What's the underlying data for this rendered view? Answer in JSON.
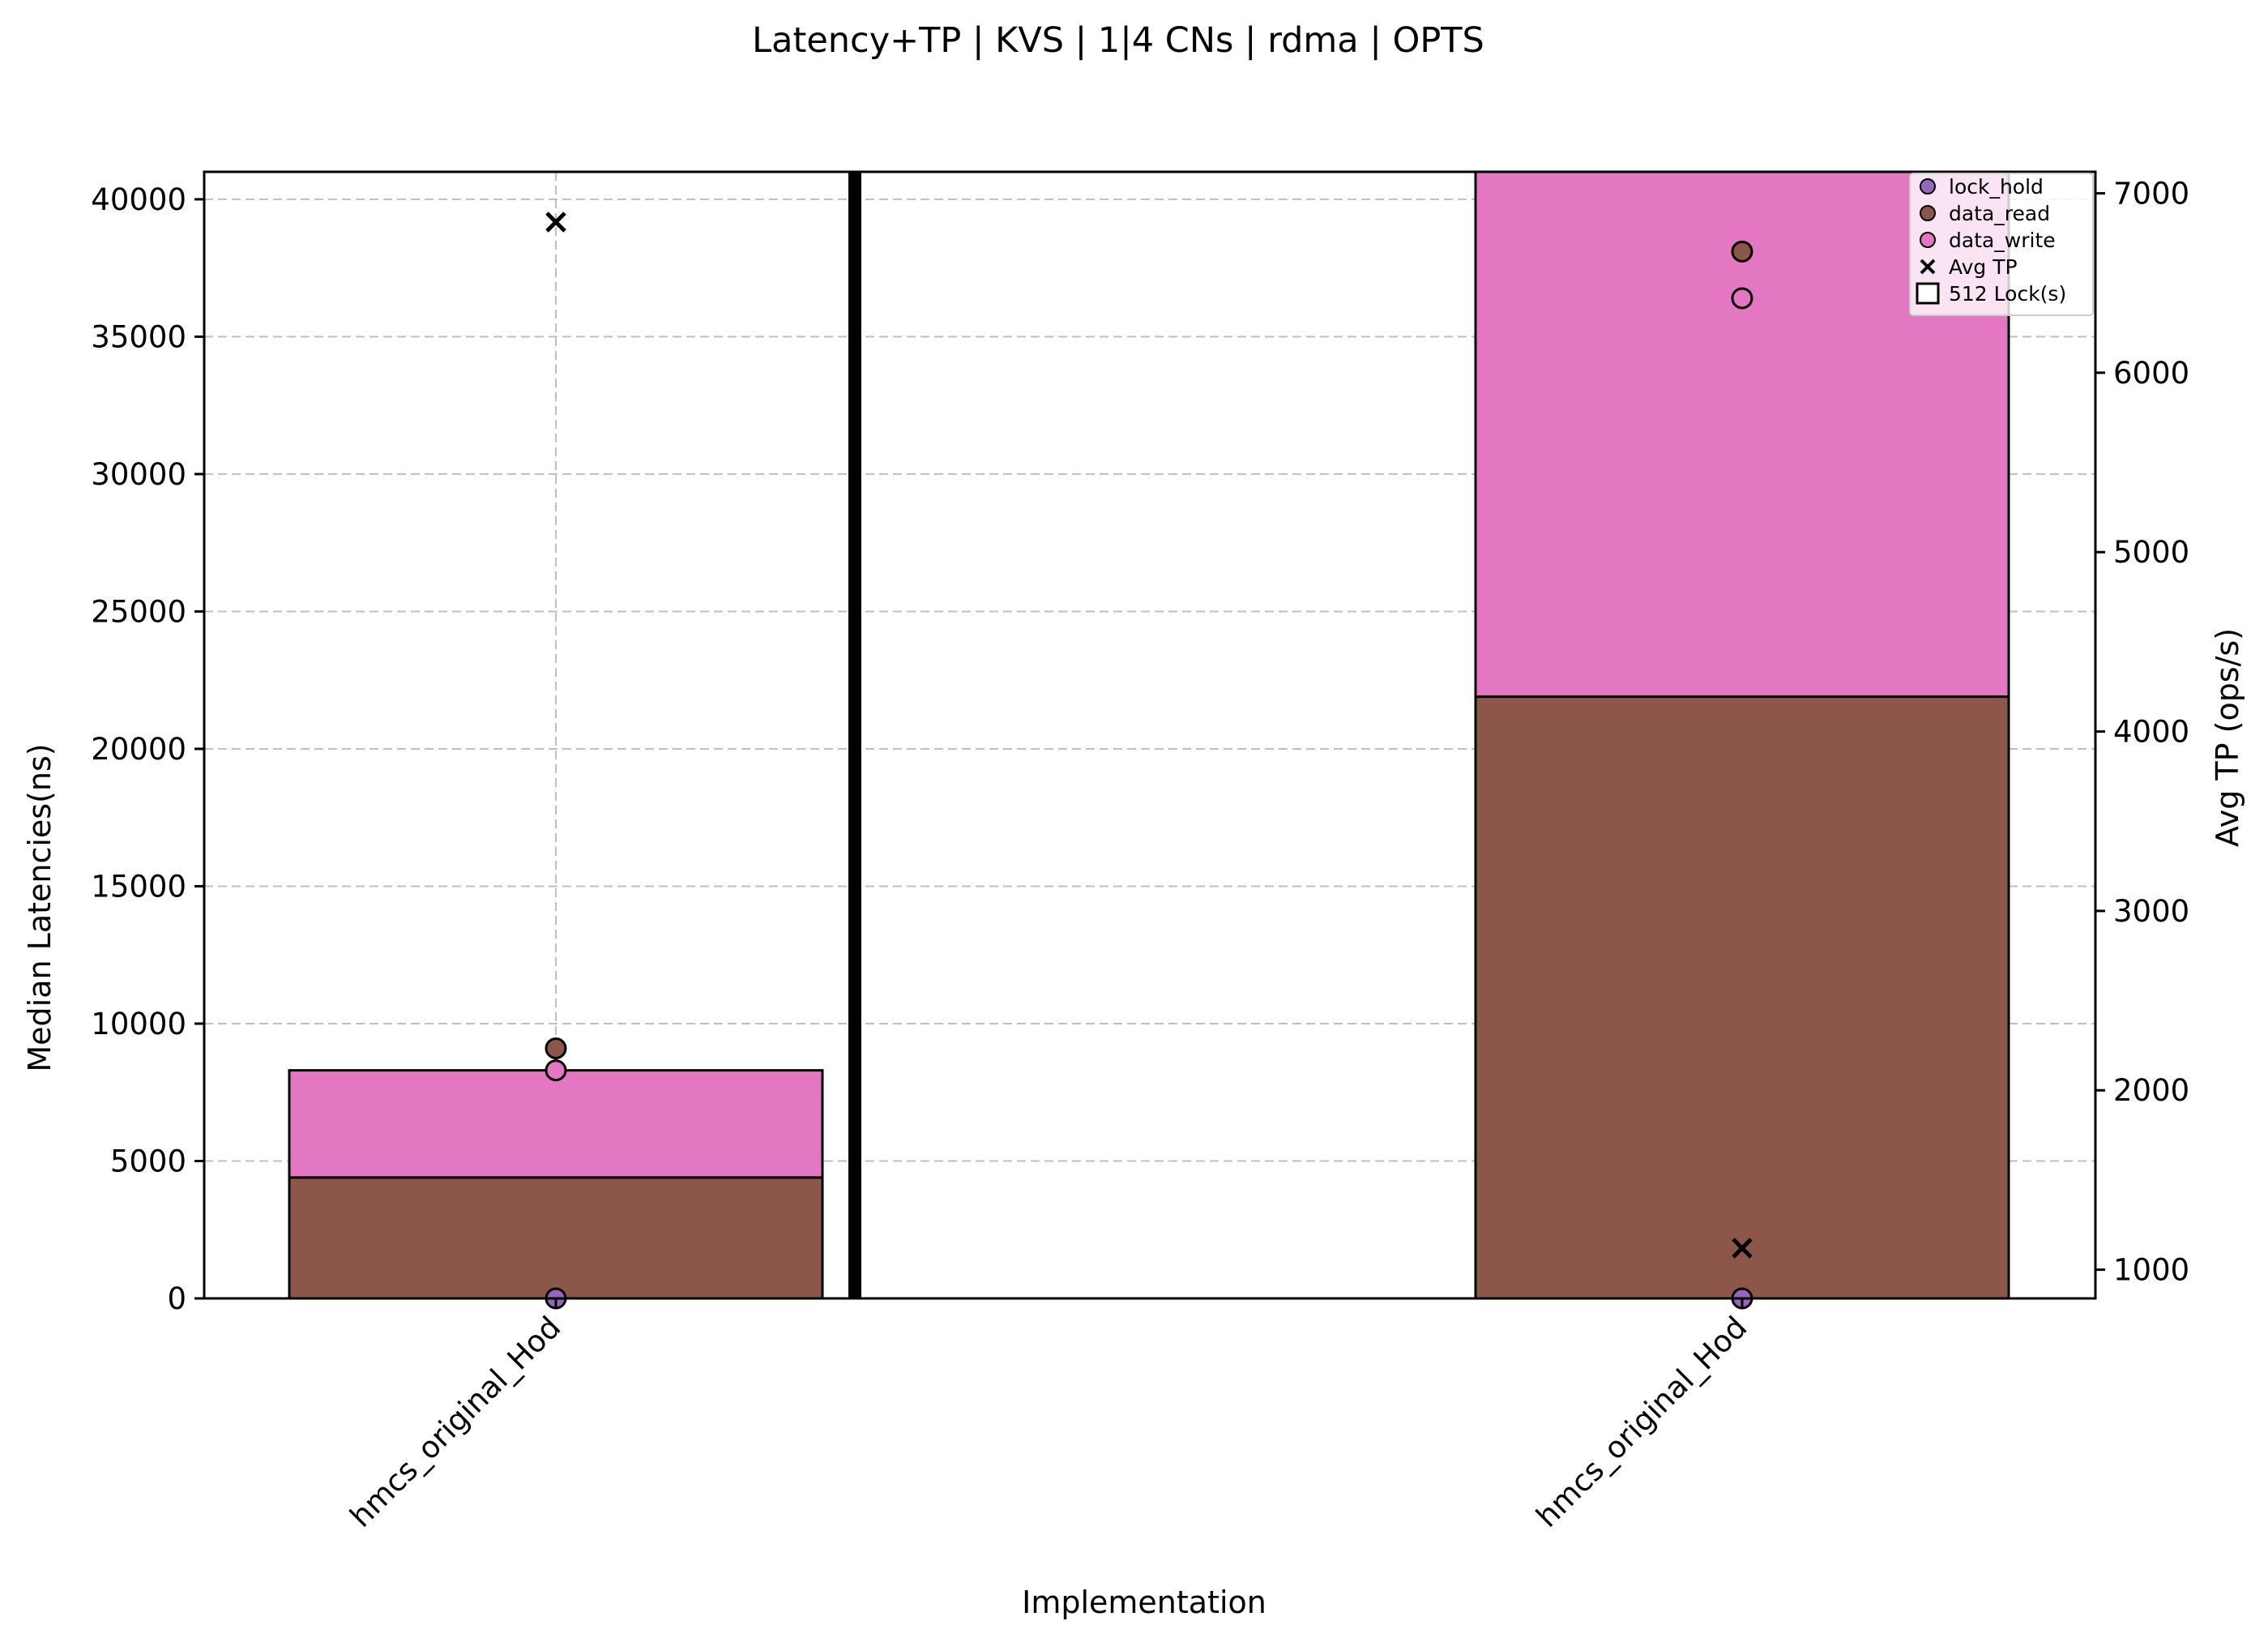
{
  "chart_data": {
    "type": "bar",
    "title": "Latency+TP | KVS | 1|4 CNs | rdma | OPTS",
    "xlabel": "Implementation",
    "ylabel": "Median Latencies(ns)",
    "y2label": "Avg TP (ops/s)",
    "categories": [
      "hmcs_original_Hod",
      "hmcs_original_Hod"
    ],
    "ylim": [
      0,
      41000
    ],
    "y2lim": [
      840,
      7120
    ],
    "yticks": [
      0,
      5000,
      10000,
      15000,
      20000,
      25000,
      30000,
      35000,
      40000
    ],
    "y2ticks": [
      1000,
      2000,
      3000,
      4000,
      5000,
      6000,
      7000
    ],
    "grid": true,
    "legend_position": "top-right",
    "stacked_bars": [
      {
        "name": "data_read",
        "color": "#8c564b",
        "values": [
          4400,
          21900
        ]
      },
      {
        "name": "data_write",
        "color": "#e377c2",
        "values": [
          3900,
          19100
        ]
      }
    ],
    "markers": [
      {
        "name": "lock_hold",
        "color": "#9467bd",
        "axis": "left",
        "values": [
          0,
          0
        ]
      },
      {
        "name": "data_read",
        "color": "#8c564b",
        "axis": "left",
        "values": [
          9100,
          38100
        ]
      },
      {
        "name": "data_write",
        "color": "#e377c2",
        "axis": "left",
        "values": [
          8300,
          36400
        ]
      },
      {
        "name": "Avg TP",
        "color": "#000000",
        "axis": "right",
        "marker": "x",
        "values": [
          6840,
          1120
        ]
      }
    ],
    "legend": [
      {
        "label": "lock_hold",
        "symbol": "circle",
        "color": "#9467bd"
      },
      {
        "label": "data_read",
        "symbol": "circle",
        "color": "#8c564b"
      },
      {
        "label": "data_write",
        "symbol": "circle",
        "color": "#e377c2"
      },
      {
        "label": "Avg TP",
        "symbol": "x",
        "color": "#000000"
      },
      {
        "label": "512 Lock(s)",
        "symbol": "square",
        "color": "#ffffff"
      }
    ]
  }
}
